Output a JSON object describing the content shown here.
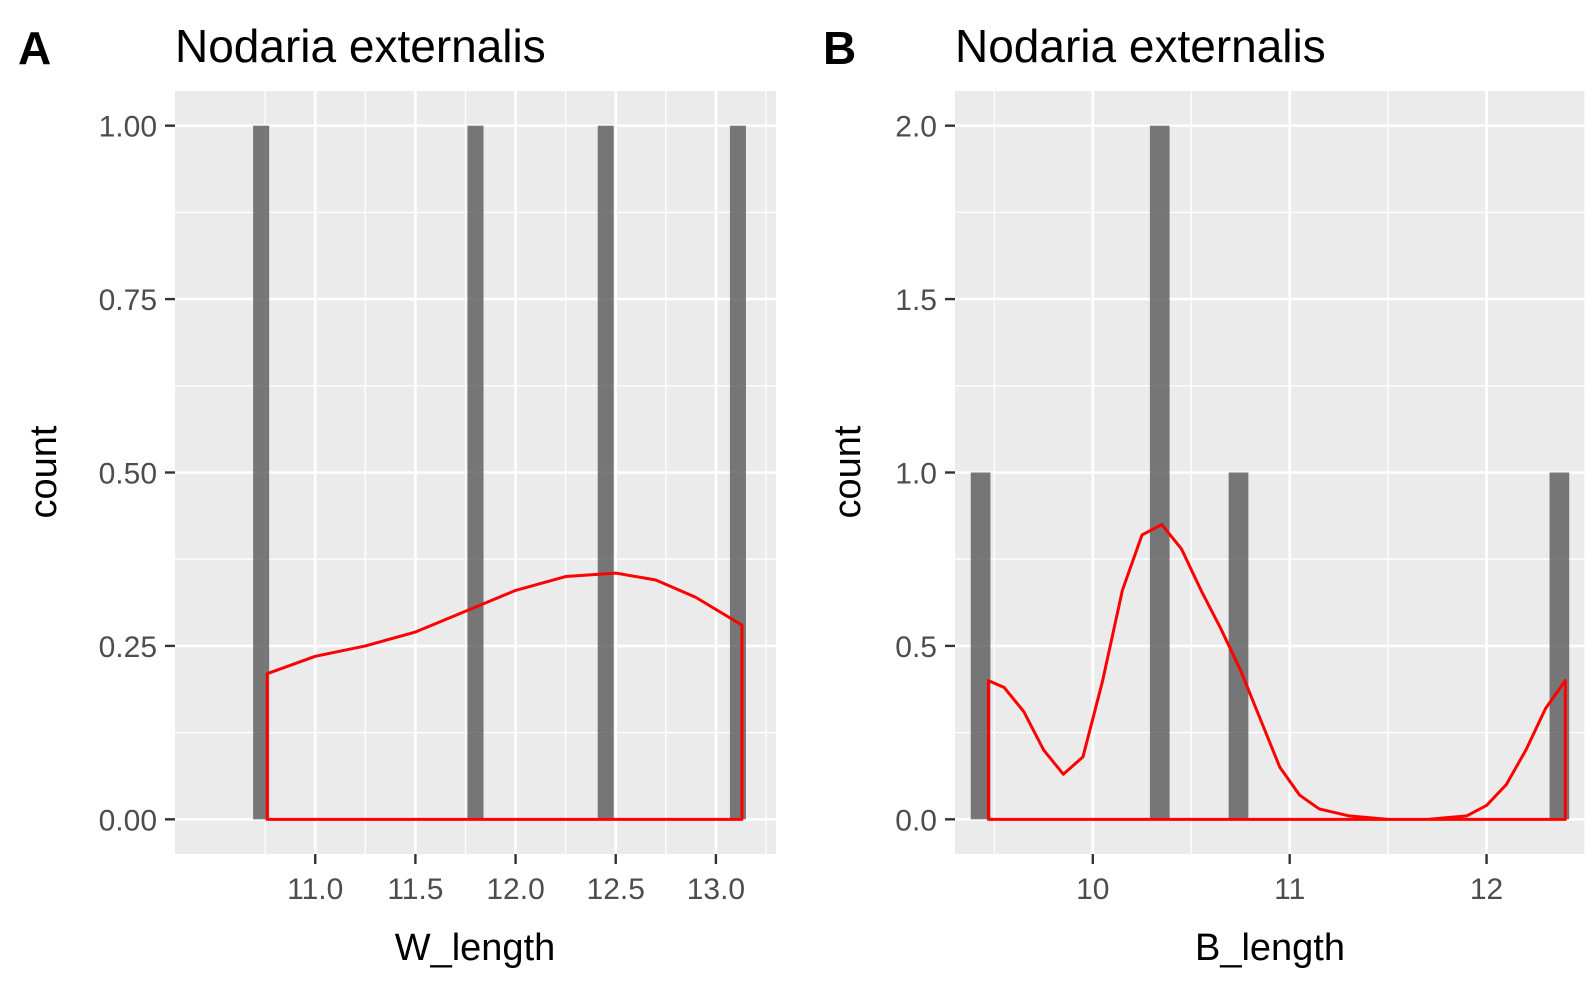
{
  "chart_data": [
    {
      "type": "histogram",
      "panel_label": "A",
      "title": "Nodaria externalis",
      "xlabel": "W_length",
      "ylabel": "count",
      "xlim": [
        10.3,
        13.3
      ],
      "ylim": [
        -0.05,
        1.05
      ],
      "x_ticks": [
        11.0,
        11.5,
        12.0,
        12.5,
        13.0
      ],
      "x_tick_labels": [
        "11.0",
        "11.5",
        "12.0",
        "12.5",
        "13.0"
      ],
      "y_ticks": [
        0,
        0.25,
        0.5,
        0.75,
        1.0
      ],
      "y_tick_labels": [
        "0.00",
        "0.25",
        "0.50",
        "0.75",
        "1.00"
      ],
      "bar_width": 0.08,
      "bars": [
        {
          "x": 10.73,
          "count": 1
        },
        {
          "x": 11.8,
          "count": 1
        },
        {
          "x": 12.45,
          "count": 1
        },
        {
          "x": 13.11,
          "count": 1
        }
      ],
      "density": {
        "color": "#ff0000",
        "x": [
          10.76,
          11.0,
          11.25,
          11.5,
          11.75,
          12.0,
          12.25,
          12.5,
          12.7,
          12.9,
          13.13
        ],
        "y": [
          0.21,
          0.235,
          0.25,
          0.27,
          0.3,
          0.33,
          0.35,
          0.355,
          0.345,
          0.32,
          0.28
        ]
      },
      "grid": true
    },
    {
      "type": "histogram",
      "panel_label": "B",
      "title": "Nodaria externalis",
      "xlabel": "B_length",
      "ylabel": "count",
      "xlim": [
        9.3,
        12.5
      ],
      "ylim": [
        -0.1,
        2.1
      ],
      "x_ticks": [
        10,
        11,
        12
      ],
      "x_tick_labels": [
        "10",
        "11",
        "12"
      ],
      "y_ticks": [
        0,
        0.5,
        1.0,
        1.5,
        2.0
      ],
      "y_tick_labels": [
        "0.0",
        "0.5",
        "1.0",
        "1.5",
        "2.0"
      ],
      "bar_width": 0.1,
      "bars": [
        {
          "x": 9.43,
          "count": 1
        },
        {
          "x": 10.34,
          "count": 2
        },
        {
          "x": 10.74,
          "count": 1
        },
        {
          "x": 12.37,
          "count": 1
        }
      ],
      "density": {
        "color": "#ff0000",
        "x": [
          9.47,
          9.55,
          9.65,
          9.75,
          9.85,
          9.95,
          10.05,
          10.15,
          10.25,
          10.35,
          10.45,
          10.55,
          10.65,
          10.75,
          10.85,
          10.95,
          11.05,
          11.15,
          11.3,
          11.5,
          11.7,
          11.9,
          12.0,
          12.1,
          12.2,
          12.3,
          12.4
        ],
        "y": [
          0.4,
          0.38,
          0.31,
          0.2,
          0.13,
          0.18,
          0.4,
          0.66,
          0.82,
          0.85,
          0.78,
          0.66,
          0.55,
          0.43,
          0.29,
          0.15,
          0.07,
          0.03,
          0.01,
          0.0,
          0.0,
          0.01,
          0.04,
          0.1,
          0.2,
          0.32,
          0.4
        ]
      },
      "grid": true
    }
  ]
}
